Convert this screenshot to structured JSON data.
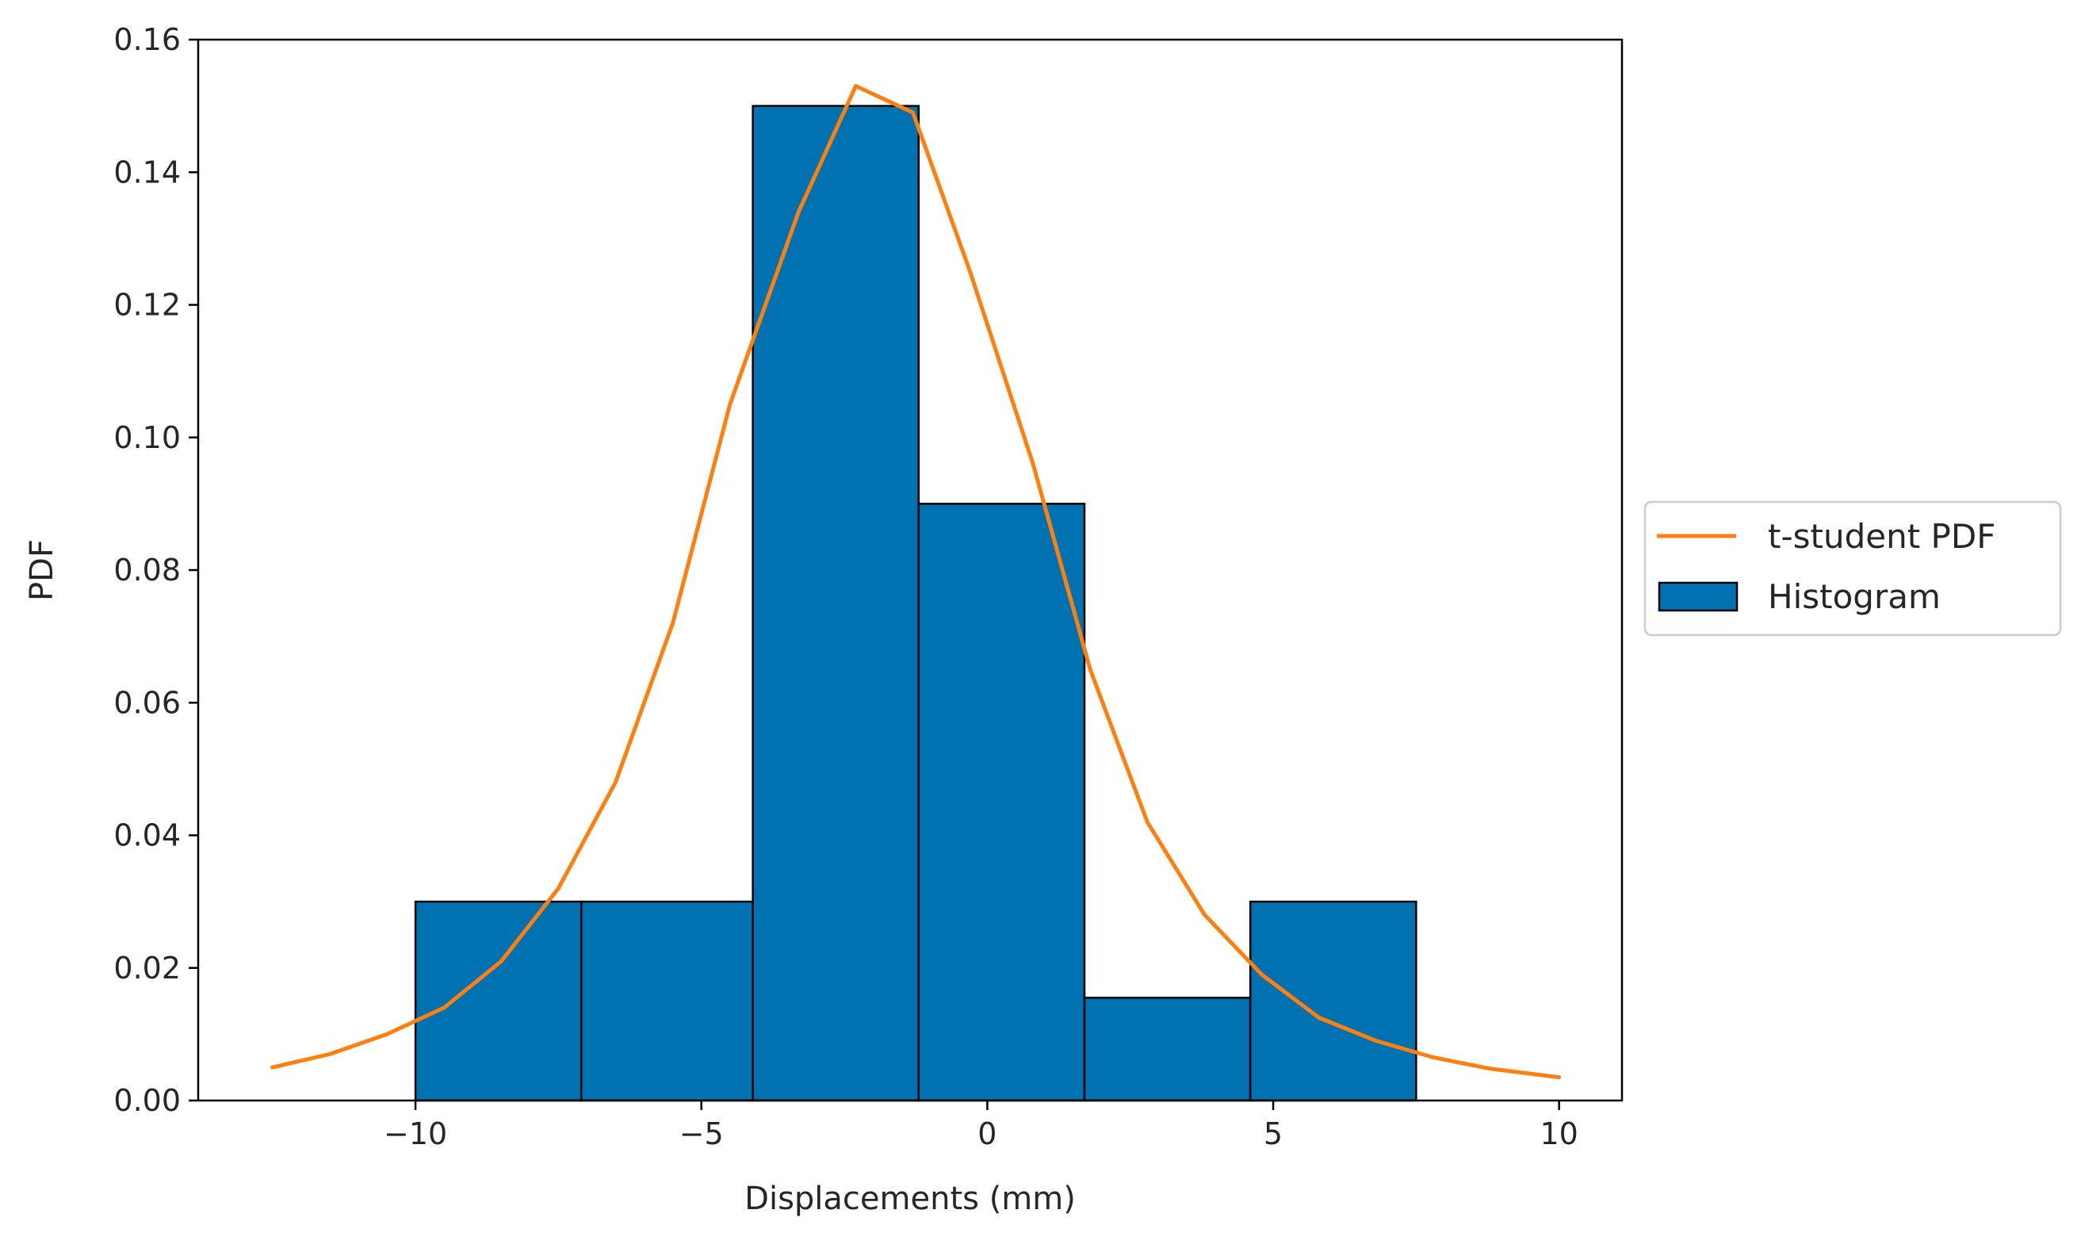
{
  "chart_data": {
    "type": "bar",
    "title": "",
    "xlabel": "Displacements (mm)",
    "ylabel": "PDF",
    "xlim": [
      -13.8,
      11.1
    ],
    "ylim": [
      0,
      0.16
    ],
    "grid": false,
    "legend_position": "outside-right",
    "x_ticks": [
      -10,
      -5,
      0,
      5,
      10
    ],
    "x_tick_labels": [
      "−10",
      "−5",
      "0",
      "5",
      "10"
    ],
    "y_ticks": [
      0,
      0.02,
      0.04,
      0.06,
      0.08,
      0.1,
      0.12,
      0.14,
      0.16
    ],
    "y_tick_labels": [
      "0.00",
      "0.02",
      "0.04",
      "0.06",
      "0.08",
      "0.10",
      "0.12",
      "0.14",
      "0.16"
    ],
    "series": [
      {
        "name": "Histogram",
        "kind": "histogram",
        "color": "#0072b2",
        "edgecolor": "#000000",
        "bins": [
          {
            "left": -10.0,
            "right": -7.1,
            "value": 0.03
          },
          {
            "left": -7.1,
            "right": -4.1,
            "value": 0.03
          },
          {
            "left": -4.1,
            "right": -1.2,
            "value": 0.15
          },
          {
            "left": -1.2,
            "right": 1.7,
            "value": 0.09
          },
          {
            "left": 1.7,
            "right": 4.6,
            "value": 0.0155
          },
          {
            "left": 4.6,
            "right": 7.5,
            "value": 0.03
          }
        ]
      },
      {
        "name": "t-student PDF",
        "kind": "line",
        "color": "#ff7f0e",
        "x": [
          -12.5,
          -11.5,
          -10.5,
          -9.5,
          -8.5,
          -7.5,
          -6.5,
          -5.5,
          -4.5,
          -3.3,
          -2.3,
          -1.3,
          -0.3,
          0.8,
          1.8,
          2.8,
          3.8,
          4.8,
          5.8,
          6.8,
          7.8,
          8.8,
          10.0
        ],
        "y": [
          0.005,
          0.007,
          0.01,
          0.014,
          0.021,
          0.032,
          0.048,
          0.072,
          0.105,
          0.134,
          0.153,
          0.149,
          0.125,
          0.096,
          0.065,
          0.042,
          0.028,
          0.019,
          0.0125,
          0.009,
          0.0065,
          0.0048,
          0.0035
        ]
      }
    ]
  }
}
